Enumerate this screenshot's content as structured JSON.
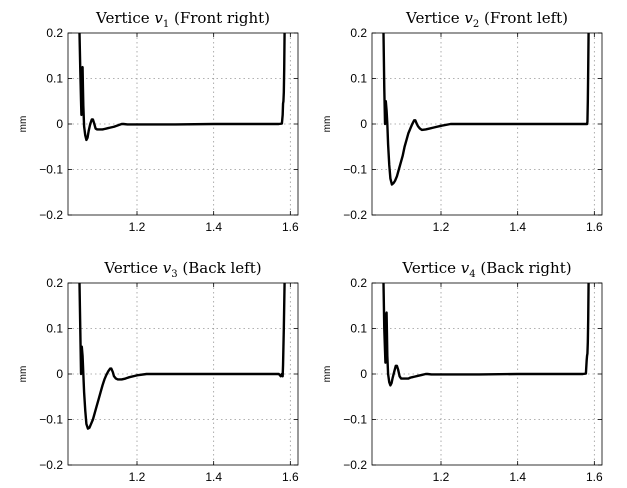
{
  "chart_data": [
    {
      "type": "line",
      "title": "Vertice v1 (Front right)",
      "title_parts": {
        "prefix": "Vertice ",
        "var": "v",
        "sub": "1",
        "suffix": " (Front right)"
      },
      "ylabel": "mm",
      "xlim": [
        1.02,
        1.62
      ],
      "ylim": [
        -0.2,
        0.2
      ],
      "xticks": [
        1.2,
        1.4,
        1.6
      ],
      "xtick_labels": [
        "1.2",
        "1.4",
        "1.6"
      ],
      "yticks": [
        -0.2,
        -0.1,
        0,
        0.1,
        0.2
      ],
      "ytick_labels": [
        "−0.2",
        "−0.1",
        "0",
        "0.1",
        "0.2"
      ],
      "grid": true,
      "series": [
        {
          "x": [
            1.05,
            1.052,
            1.054,
            1.055,
            1.056,
            1.057,
            1.058,
            1.059,
            1.06,
            1.062,
            1.065,
            1.068,
            1.071,
            1.074,
            1.078,
            1.082,
            1.085,
            1.088,
            1.092,
            1.096,
            1.1,
            1.105,
            1.11,
            1.115,
            1.12,
            1.125,
            1.13,
            1.14,
            1.15,
            1.16,
            1.165,
            1.175,
            1.2,
            1.25,
            1.3,
            1.4,
            1.5,
            1.57,
            1.578,
            1.58,
            1.581,
            1.582,
            1.583,
            1.584,
            1.585,
            1.586,
            1.587,
            1.588
          ],
          "y": [
            0.2,
            0.12,
            0.05,
            0.02,
            0.06,
            0.12,
            0.125,
            0.08,
            0.04,
            -0.005,
            -0.025,
            -0.035,
            -0.03,
            -0.015,
            0.0,
            0.01,
            0.01,
            0.002,
            -0.01,
            -0.012,
            -0.012,
            -0.012,
            -0.012,
            -0.011,
            -0.01,
            -0.009,
            -0.008,
            -0.006,
            -0.003,
            0.0,
            0.0,
            -0.001,
            -0.001,
            -0.001,
            -0.001,
            0.0,
            0.0,
            0.0,
            0.001,
            0.02,
            0.045,
            0.05,
            0.07,
            0.12,
            0.2,
            0.2,
            0.2,
            0.2
          ]
        }
      ]
    },
    {
      "type": "line",
      "title": "Vertice v2 (Front left)",
      "title_parts": {
        "prefix": "Vertice ",
        "var": "v",
        "sub": "2",
        "suffix": " (Front left)"
      },
      "ylabel": "mm",
      "xlim": [
        1.02,
        1.62
      ],
      "ylim": [
        -0.2,
        0.2
      ],
      "xticks": [
        1.2,
        1.4,
        1.6
      ],
      "xtick_labels": [
        "1.2",
        "1.4",
        "1.6"
      ],
      "yticks": [
        -0.2,
        -0.1,
        0,
        0.1,
        0.2
      ],
      "ytick_labels": [
        "−0.2",
        "−0.1",
        "0",
        "0.1",
        "0.2"
      ],
      "grid": true,
      "series": [
        {
          "x": [
            1.05,
            1.052,
            1.054,
            1.056,
            1.058,
            1.06,
            1.062,
            1.065,
            1.068,
            1.072,
            1.076,
            1.08,
            1.085,
            1.09,
            1.095,
            1.1,
            1.105,
            1.11,
            1.115,
            1.12,
            1.125,
            1.13,
            1.133,
            1.137,
            1.14,
            1.145,
            1.15,
            1.16,
            1.17,
            1.18,
            1.2,
            1.225,
            1.25,
            1.3,
            1.4,
            1.5,
            1.57,
            1.578,
            1.58,
            1.581,
            1.582,
            1.583,
            1.584,
            1.585,
            1.586,
            1.587,
            1.588
          ],
          "y": [
            0.2,
            0.08,
            0.0,
            0.05,
            0.03,
            0.0,
            -0.045,
            -0.09,
            -0.12,
            -0.133,
            -0.13,
            -0.125,
            -0.115,
            -0.1,
            -0.085,
            -0.07,
            -0.05,
            -0.035,
            -0.02,
            -0.01,
            0.0,
            0.008,
            0.008,
            0.0,
            -0.005,
            -0.01,
            -0.013,
            -0.012,
            -0.01,
            -0.008,
            -0.004,
            0.0,
            0.0,
            0.0,
            0.0,
            0.0,
            0.0,
            0.0,
            0.0,
            0.0,
            0.005,
            0.05,
            0.12,
            0.2,
            0.2,
            0.2,
            0.2
          ]
        }
      ]
    },
    {
      "type": "line",
      "title": "Vertice v3 (Back left)",
      "title_parts": {
        "prefix": "Vertice ",
        "var": "v",
        "sub": "3",
        "suffix": " (Back left)"
      },
      "ylabel": "mm",
      "xlim": [
        1.02,
        1.62
      ],
      "ylim": [
        -0.2,
        0.2
      ],
      "xticks": [
        1.2,
        1.4,
        1.6
      ],
      "xtick_labels": [
        "1.2",
        "1.4",
        "1.6"
      ],
      "yticks": [
        -0.2,
        -0.1,
        0,
        0.1,
        0.2
      ],
      "ytick_labels": [
        "−0.2",
        "−0.1",
        "0",
        "0.1",
        "0.2"
      ],
      "grid": true,
      "series": [
        {
          "x": [
            1.05,
            1.052,
            1.054,
            1.056,
            1.058,
            1.06,
            1.062,
            1.065,
            1.068,
            1.072,
            1.076,
            1.08,
            1.085,
            1.09,
            1.095,
            1.1,
            1.105,
            1.11,
            1.115,
            1.12,
            1.125,
            1.13,
            1.133,
            1.137,
            1.14,
            1.145,
            1.15,
            1.16,
            1.17,
            1.18,
            1.2,
            1.225,
            1.25,
            1.3,
            1.4,
            1.5,
            1.57,
            1.575,
            1.578,
            1.58,
            1.581,
            1.582,
            1.583,
            1.584,
            1.585,
            1.586,
            1.587
          ],
          "y": [
            0.2,
            0.1,
            0.0,
            0.06,
            0.04,
            0.0,
            -0.04,
            -0.08,
            -0.11,
            -0.12,
            -0.118,
            -0.11,
            -0.1,
            -0.085,
            -0.07,
            -0.055,
            -0.04,
            -0.025,
            -0.012,
            -0.002,
            0.006,
            0.012,
            0.012,
            0.004,
            -0.005,
            -0.01,
            -0.012,
            -0.012,
            -0.01,
            -0.007,
            -0.003,
            0.0,
            0.0,
            0.0,
            0.0,
            0.0,
            0.0,
            -0.005,
            0.0,
            -0.005,
            0.02,
            0.06,
            0.1,
            0.15,
            0.2,
            0.2,
            0.2
          ]
        }
      ]
    },
    {
      "type": "line",
      "title": "Vertice v4 (Back right)",
      "title_parts": {
        "prefix": "Vertice ",
        "var": "v",
        "sub": "4",
        "suffix": " (Back right)"
      },
      "ylabel": "mm",
      "xlim": [
        1.02,
        1.62
      ],
      "ylim": [
        -0.2,
        0.2
      ],
      "xticks": [
        1.2,
        1.4,
        1.6
      ],
      "xtick_labels": [
        "1.2",
        "1.4",
        "1.6"
      ],
      "yticks": [
        -0.2,
        -0.1,
        0,
        0.1,
        0.2
      ],
      "ytick_labels": [
        "−0.2",
        "−0.1",
        "0",
        "0.1",
        "0.2"
      ],
      "grid": true,
      "series": [
        {
          "x": [
            1.05,
            1.052,
            1.054,
            1.055,
            1.056,
            1.057,
            1.058,
            1.059,
            1.06,
            1.062,
            1.065,
            1.068,
            1.071,
            1.074,
            1.078,
            1.082,
            1.085,
            1.088,
            1.092,
            1.096,
            1.1,
            1.105,
            1.11,
            1.115,
            1.12,
            1.125,
            1.13,
            1.14,
            1.15,
            1.16,
            1.165,
            1.175,
            1.2,
            1.25,
            1.3,
            1.4,
            1.5,
            1.57,
            1.578,
            1.58,
            1.581,
            1.582,
            1.583,
            1.584,
            1.585,
            1.586,
            1.587,
            1.588
          ],
          "y": [
            0.2,
            0.1,
            0.05,
            0.025,
            0.07,
            0.13,
            0.135,
            0.09,
            0.04,
            0.0,
            -0.018,
            -0.025,
            -0.02,
            -0.008,
            0.005,
            0.018,
            0.018,
            0.01,
            -0.005,
            -0.01,
            -0.01,
            -0.01,
            -0.01,
            -0.01,
            -0.008,
            -0.007,
            -0.006,
            -0.004,
            -0.002,
            0.0,
            0.0,
            -0.001,
            -0.001,
            -0.001,
            -0.001,
            0.0,
            0.0,
            0.0,
            0.001,
            0.03,
            0.04,
            0.045,
            0.07,
            0.12,
            0.2,
            0.2,
            0.2,
            0.2
          ]
        }
      ]
    }
  ]
}
